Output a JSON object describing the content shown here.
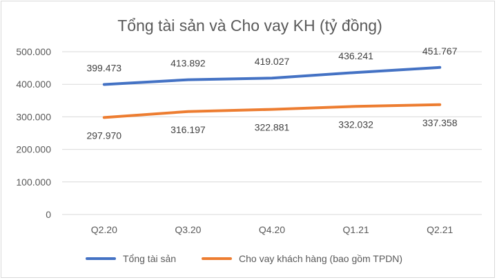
{
  "chart_data": {
    "type": "line",
    "title": "Tổng tài sản và Cho vay KH (tỷ đồng)",
    "categories": [
      "Q2.20",
      "Q3.20",
      "Q4.20",
      "Q1.21",
      "Q2.21"
    ],
    "ylim": [
      0,
      500000
    ],
    "yticks": [
      0,
      100000,
      200000,
      300000,
      400000,
      500000
    ],
    "ytick_labels": [
      "0",
      "100.000",
      "200.000",
      "300.000",
      "400.000",
      "500.000"
    ],
    "grid": true,
    "legend_position": "bottom",
    "series": [
      {
        "name": "Tổng tài sản",
        "color": "#4472C4",
        "values": [
          399473,
          413892,
          419027,
          436241,
          451767
        ],
        "labels": [
          "399.473",
          "413.892",
          "419.027",
          "436.241",
          "451.767"
        ],
        "label_position": "above"
      },
      {
        "name": "Cho vay khách hàng (bao gồm TPDN)",
        "color": "#ED7D31",
        "values": [
          297970,
          316197,
          322881,
          332032,
          337358
        ],
        "labels": [
          "297.970",
          "316.197",
          "322.881",
          "332.032",
          "337.358"
        ],
        "label_position": "below"
      }
    ]
  }
}
